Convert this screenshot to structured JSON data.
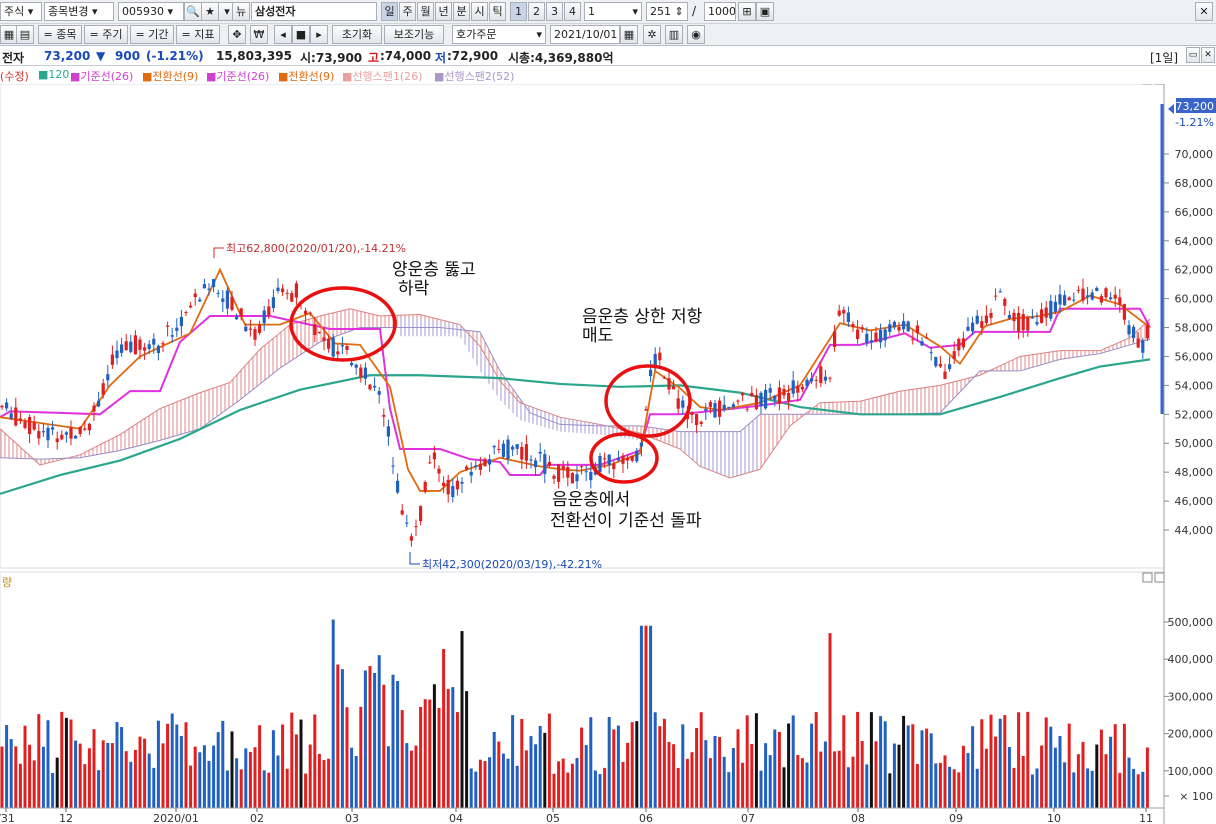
{
  "toolbar1": {
    "market": "주식",
    "change_stock": "종목변경",
    "code": "005930",
    "name": "삼성전자",
    "periods": [
      "일",
      "주",
      "월",
      "년",
      "분",
      "시",
      "틱"
    ],
    "numbers": [
      "1",
      "2",
      "3",
      "4"
    ],
    "interval": "1",
    "count": "251",
    "slash": "/",
    "max": "1000"
  },
  "toolbar2": {
    "item_btn": "= 종목",
    "cycle_btn": "= 주기",
    "period_btn": "= 기간",
    "indicator_btn": "= 지표",
    "won": "₩",
    "reset": "초기화",
    "aux": "보조기능",
    "order": "호가주문",
    "date": "2021/10/01"
  },
  "info": {
    "name": "전자",
    "price": "73,200",
    "arrow": "▼",
    "change": "900",
    "rate": "(-1.21%)",
    "volume": "15,803,395",
    "open": "시:73,900",
    "high_label": "고",
    "high": ":74,000",
    "low_label": "저",
    "low": ":72,900",
    "mcap": "시총:4,369,880억",
    "day_badge": "[1일]"
  },
  "legend": [
    {
      "text": "(수정)",
      "color": "#d03030"
    },
    {
      "text": "■120",
      "color": "#2aa68c"
    },
    {
      "text": "■기준선(26)",
      "color": "#d040d0"
    },
    {
      "text": "■전환선(9)",
      "color": "#e06a10"
    },
    {
      "text": "■기준선(26)",
      "color": "#d040d0"
    },
    {
      "text": "■전환선(9)",
      "color": "#e06a10"
    },
    {
      "text": "■선행스팬1(26)",
      "color": "#e8a0a0"
    },
    {
      "text": "■선행스팬2(52)",
      "color": "#a898c8"
    }
  ],
  "price_axis": [
    "70,000",
    "68,000",
    "66,000",
    "64,000",
    "62,000",
    "60,000",
    "58,000",
    "56,000",
    "54,000",
    "52,000",
    "50,000",
    "48,000",
    "46,000",
    "44,000"
  ],
  "current_price_tag": {
    "price": "73,200",
    "rate": "-1.21%"
  },
  "annotations": {
    "high": "최고62,800(2020/01/20),-14.21%",
    "low": "최저42,300(2020/03/19),-42.21%",
    "note1_line1": "양운층 뚫고",
    "note1_line2": "하락",
    "note2_line1": "음운층 상한 저항",
    "note2_line2": "매도",
    "note3_line1": "음운층에서",
    "note3_line2": "전환선이 기준선 돌파"
  },
  "volume_label": "량",
  "volume_axis": [
    "500,000",
    "400,000",
    "300,000",
    "200,000",
    "100,000",
    "× 100"
  ],
  "x_axis": [
    "/31",
    "12",
    "2020/01",
    "02",
    "03",
    "04",
    "05",
    "06",
    "07",
    "08",
    "09",
    "10",
    "11"
  ],
  "colors": {
    "up": "#e02020",
    "down": "#2060c0",
    "conv": "#e06a10",
    "base": "#e030e0",
    "ma120": "#2aa68c",
    "span1": "#e08080",
    "span2": "#9a8cc8",
    "circle": "#e81010"
  }
}
